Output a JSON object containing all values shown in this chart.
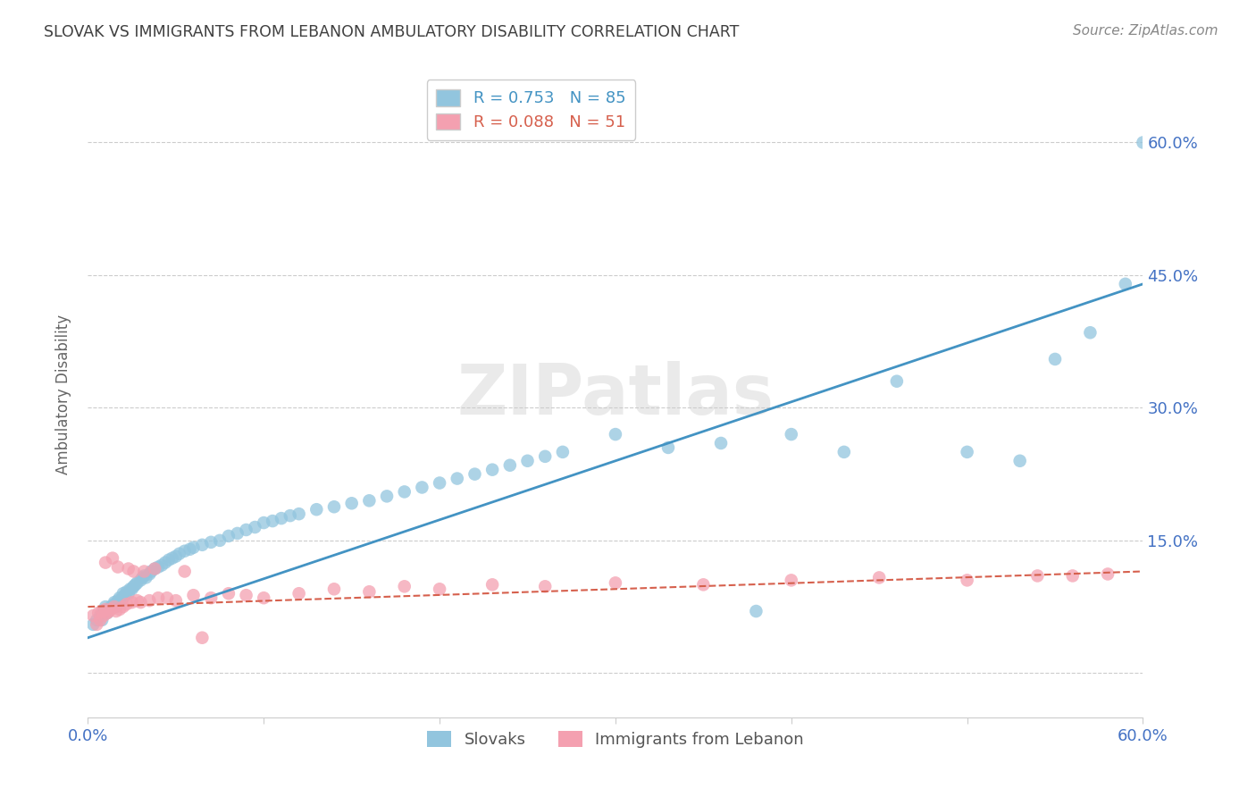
{
  "title": "SLOVAK VS IMMIGRANTS FROM LEBANON AMBULATORY DISABILITY CORRELATION CHART",
  "source": "Source: ZipAtlas.com",
  "ylabel": "Ambulatory Disability",
  "xmin": 0.0,
  "xmax": 0.6,
  "ymin": -0.05,
  "ymax": 0.68,
  "yticks": [
    0.0,
    0.15,
    0.3,
    0.45,
    0.6
  ],
  "ytick_labels": [
    "",
    "15.0%",
    "30.0%",
    "45.0%",
    "60.0%"
  ],
  "xticks": [
    0.0,
    0.1,
    0.2,
    0.3,
    0.4,
    0.5,
    0.6
  ],
  "xtick_labels": [
    "0.0%",
    "",
    "",
    "",
    "",
    "",
    "60.0%"
  ],
  "watermark": "ZIPatlas",
  "legend_line1": "R = 0.753   N = 85",
  "legend_line2": "R = 0.088   N = 51",
  "blue_color": "#92c5de",
  "pink_color": "#f4a0b0",
  "blue_line_color": "#4393c3",
  "pink_line_color": "#d6604d",
  "grid_color": "#cccccc",
  "title_color": "#404040",
  "axis_label_color": "#666666",
  "tick_label_color": "#4472c4",
  "source_color": "#888888",
  "blue_trendline_x": [
    0.0,
    0.6
  ],
  "blue_trendline_y": [
    0.04,
    0.44
  ],
  "pink_trendline_x": [
    0.0,
    0.6
  ],
  "pink_trendline_y": [
    0.075,
    0.115
  ],
  "slovaks_x": [
    0.003,
    0.005,
    0.007,
    0.008,
    0.009,
    0.01,
    0.01,
    0.011,
    0.012,
    0.013,
    0.014,
    0.015,
    0.015,
    0.016,
    0.017,
    0.018,
    0.018,
    0.019,
    0.02,
    0.02,
    0.021,
    0.022,
    0.023,
    0.024,
    0.025,
    0.026,
    0.027,
    0.028,
    0.03,
    0.031,
    0.032,
    0.033,
    0.035,
    0.036,
    0.038,
    0.04,
    0.042,
    0.044,
    0.046,
    0.048,
    0.05,
    0.052,
    0.055,
    0.058,
    0.06,
    0.065,
    0.07,
    0.075,
    0.08,
    0.085,
    0.09,
    0.095,
    0.1,
    0.105,
    0.11,
    0.115,
    0.12,
    0.13,
    0.14,
    0.15,
    0.16,
    0.17,
    0.18,
    0.19,
    0.2,
    0.21,
    0.22,
    0.23,
    0.24,
    0.25,
    0.26,
    0.27,
    0.3,
    0.33,
    0.36,
    0.4,
    0.43,
    0.46,
    0.5,
    0.53,
    0.55,
    0.57,
    0.59,
    0.6,
    0.38
  ],
  "slovaks_y": [
    0.055,
    0.06,
    0.065,
    0.06,
    0.07,
    0.07,
    0.075,
    0.068,
    0.072,
    0.075,
    0.075,
    0.078,
    0.08,
    0.075,
    0.082,
    0.08,
    0.085,
    0.082,
    0.085,
    0.09,
    0.088,
    0.092,
    0.09,
    0.095,
    0.095,
    0.098,
    0.1,
    0.102,
    0.105,
    0.108,
    0.11,
    0.108,
    0.112,
    0.115,
    0.118,
    0.12,
    0.122,
    0.125,
    0.128,
    0.13,
    0.132,
    0.135,
    0.138,
    0.14,
    0.142,
    0.145,
    0.148,
    0.15,
    0.155,
    0.158,
    0.162,
    0.165,
    0.17,
    0.172,
    0.175,
    0.178,
    0.18,
    0.185,
    0.188,
    0.192,
    0.195,
    0.2,
    0.205,
    0.21,
    0.215,
    0.22,
    0.225,
    0.23,
    0.235,
    0.24,
    0.245,
    0.25,
    0.27,
    0.255,
    0.26,
    0.27,
    0.25,
    0.33,
    0.25,
    0.24,
    0.355,
    0.385,
    0.44,
    0.6,
    0.07
  ],
  "lebanon_x": [
    0.003,
    0.005,
    0.006,
    0.007,
    0.008,
    0.009,
    0.01,
    0.011,
    0.012,
    0.013,
    0.015,
    0.016,
    0.018,
    0.02,
    0.022,
    0.025,
    0.028,
    0.03,
    0.035,
    0.04,
    0.045,
    0.05,
    0.06,
    0.07,
    0.08,
    0.09,
    0.1,
    0.12,
    0.14,
    0.16,
    0.18,
    0.2,
    0.23,
    0.26,
    0.3,
    0.35,
    0.4,
    0.45,
    0.5,
    0.54,
    0.56,
    0.58,
    0.01,
    0.014,
    0.017,
    0.023,
    0.026,
    0.032,
    0.038,
    0.055,
    0.065
  ],
  "lebanon_y": [
    0.065,
    0.055,
    0.068,
    0.06,
    0.07,
    0.065,
    0.072,
    0.068,
    0.07,
    0.072,
    0.075,
    0.07,
    0.072,
    0.075,
    0.078,
    0.08,
    0.082,
    0.08,
    0.082,
    0.085,
    0.085,
    0.082,
    0.088,
    0.085,
    0.09,
    0.088,
    0.085,
    0.09,
    0.095,
    0.092,
    0.098,
    0.095,
    0.1,
    0.098,
    0.102,
    0.1,
    0.105,
    0.108,
    0.105,
    0.11,
    0.11,
    0.112,
    0.125,
    0.13,
    0.12,
    0.118,
    0.115,
    0.115,
    0.118,
    0.115,
    0.04
  ],
  "background_color": "#ffffff"
}
